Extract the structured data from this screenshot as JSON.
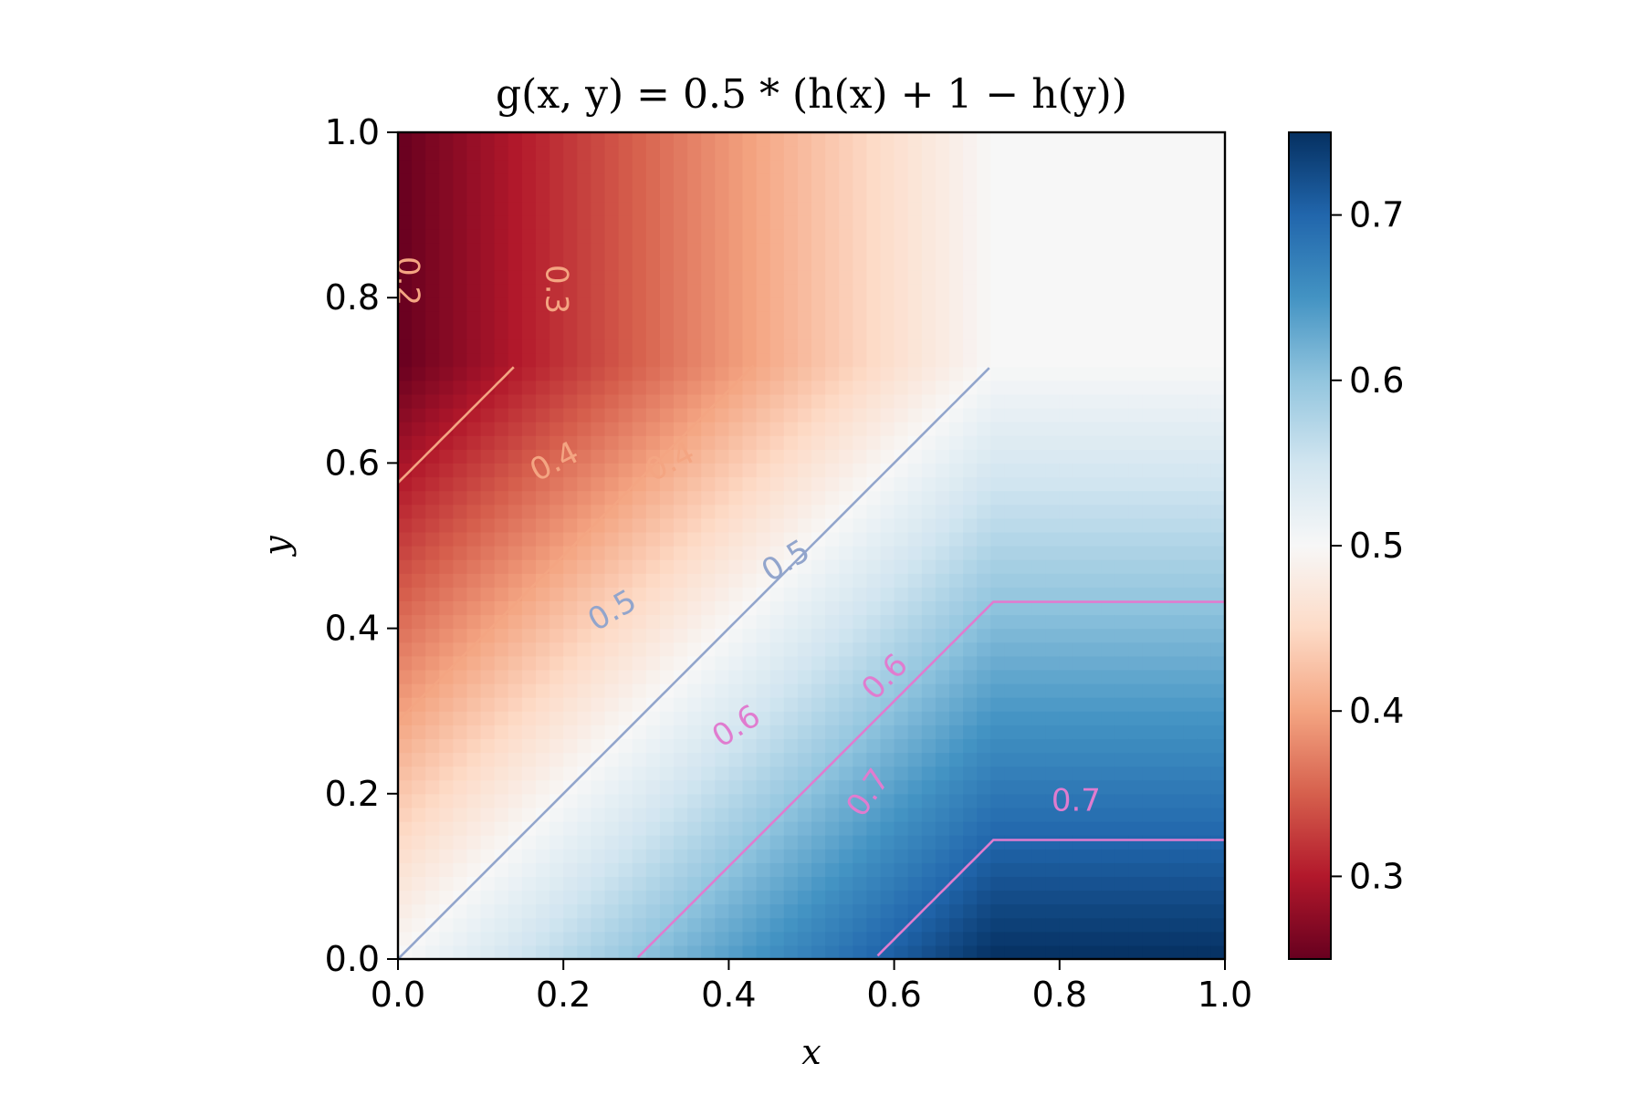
{
  "chart_data": {
    "type": "heatmap",
    "title": "g(x, y) = 0.5 * (h(x) + 1 − h(y))",
    "xlabel": "x",
    "ylabel": "y",
    "xlim": [
      0.0,
      1.0
    ],
    "ylim": [
      0.0,
      1.0
    ],
    "x_ticks": [
      "0.0",
      "0.2",
      "0.4",
      "0.6",
      "0.8",
      "1.0"
    ],
    "y_ticks": [
      "0.0",
      "0.2",
      "0.4",
      "0.6",
      "0.8",
      "1.0"
    ],
    "function": "g(x,y) = 0.5*(h(x) + 1 - h(y)), with h(t) increasing and saturating near t ≈ 0.72",
    "colormap": "RdBu",
    "color_range": [
      0.25,
      0.75
    ],
    "colorbar_ticks": [
      "0.3",
      "0.4",
      "0.5",
      "0.6",
      "0.7"
    ],
    "contour_levels": [
      0.2,
      0.3,
      0.4,
      0.5,
      0.6,
      0.7
    ],
    "contour_labels": [
      {
        "text": "0.2",
        "level": 0.2
      },
      {
        "text": "0.3",
        "level": 0.3
      },
      {
        "text": "0.4",
        "level": 0.4
      },
      {
        "text": "0.4",
        "level": 0.4
      },
      {
        "text": "0.5",
        "level": 0.5
      },
      {
        "text": "0.5",
        "level": 0.5
      },
      {
        "text": "0.6",
        "level": 0.6
      },
      {
        "text": "0.6",
        "level": 0.6
      },
      {
        "text": "0.7",
        "level": 0.7
      },
      {
        "text": "0.7",
        "level": 0.7
      }
    ],
    "grid": false
  },
  "colors": {
    "contour_low": "#f4a582",
    "contour_mid": "#92a5cc",
    "contour_high": "#e07ccf",
    "frame": "#000000"
  }
}
